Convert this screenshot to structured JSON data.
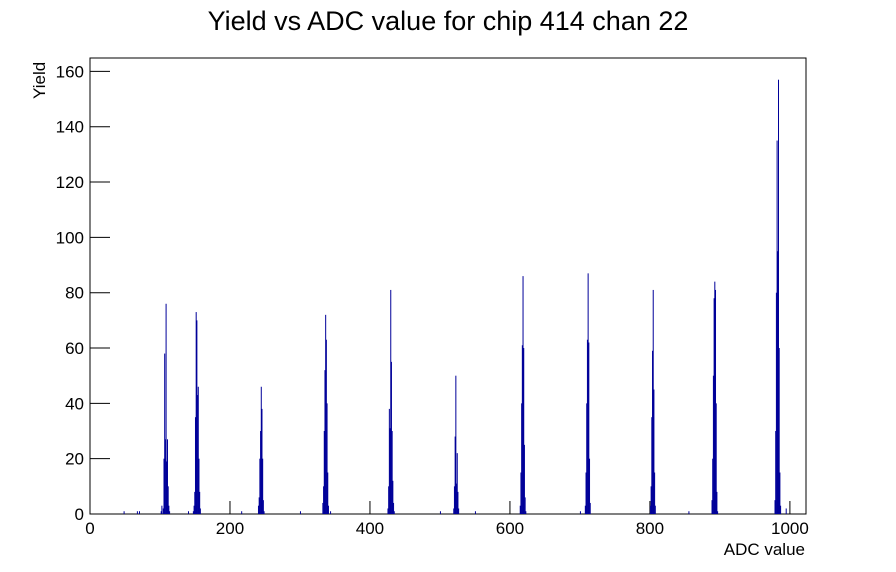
{
  "chart_data": {
    "type": "bar",
    "title": "Yield vs ADC value for chip 414 chan 22",
    "x_label": "ADC value",
    "y_label": "Yield",
    "color": "#000099",
    "x": [
      48,
      67,
      70,
      101,
      102,
      104,
      105,
      106,
      107,
      108,
      109,
      110,
      111,
      112,
      113,
      140,
      147,
      148,
      149,
      150,
      151,
      152,
      153,
      154,
      155,
      156,
      157,
      216,
      240,
      241,
      242,
      243,
      244,
      245,
      246,
      247,
      248,
      300,
      332,
      333,
      334,
      335,
      336,
      337,
      338,
      339,
      340,
      343,
      425,
      426,
      427,
      428,
      429,
      430,
      431,
      432,
      433,
      434,
      500,
      519,
      520,
      521,
      522,
      523,
      524,
      525,
      526,
      550,
      614,
      615,
      616,
      617,
      618,
      619,
      620,
      621,
      622,
      700,
      707,
      708,
      709,
      710,
      711,
      712,
      713,
      714,
      800,
      801,
      802,
      803,
      804,
      805,
      806,
      807,
      855,
      888,
      889,
      890,
      891,
      892,
      893,
      894,
      895,
      896,
      978,
      979,
      980,
      981,
      982,
      983,
      984,
      985,
      986,
      994
    ],
    "values": [
      1,
      1,
      1,
      1,
      3,
      2,
      20,
      58,
      27,
      76,
      19,
      27,
      10,
      3,
      1,
      1,
      1,
      3,
      8,
      35,
      73,
      70,
      43,
      46,
      20,
      8,
      2,
      1,
      3,
      6,
      20,
      30,
      46,
      38,
      20,
      5,
      1,
      1,
      4,
      10,
      30,
      52,
      72,
      63,
      40,
      15,
      3,
      1,
      2,
      10,
      38,
      31,
      81,
      55,
      30,
      12,
      4,
      1,
      1,
      2,
      10,
      28,
      50,
      11,
      22,
      8,
      2,
      1,
      3,
      15,
      40,
      61,
      86,
      60,
      25,
      6,
      1,
      1,
      3,
      15,
      40,
      63,
      87,
      62,
      20,
      4,
      3,
      10,
      35,
      59,
      81,
      45,
      15,
      3,
      1,
      5,
      20,
      50,
      78,
      84,
      81,
      40,
      8,
      1,
      5,
      30,
      80,
      135,
      95,
      157,
      60,
      15,
      3,
      2
    ],
    "xlim": [
      0,
      1023
    ],
    "ylim": [
      0,
      164.85
    ],
    "xticks": [
      0,
      200,
      400,
      600,
      800,
      1000
    ],
    "yticks": [
      0,
      20,
      40,
      60,
      80,
      100,
      120,
      140,
      160
    ]
  }
}
